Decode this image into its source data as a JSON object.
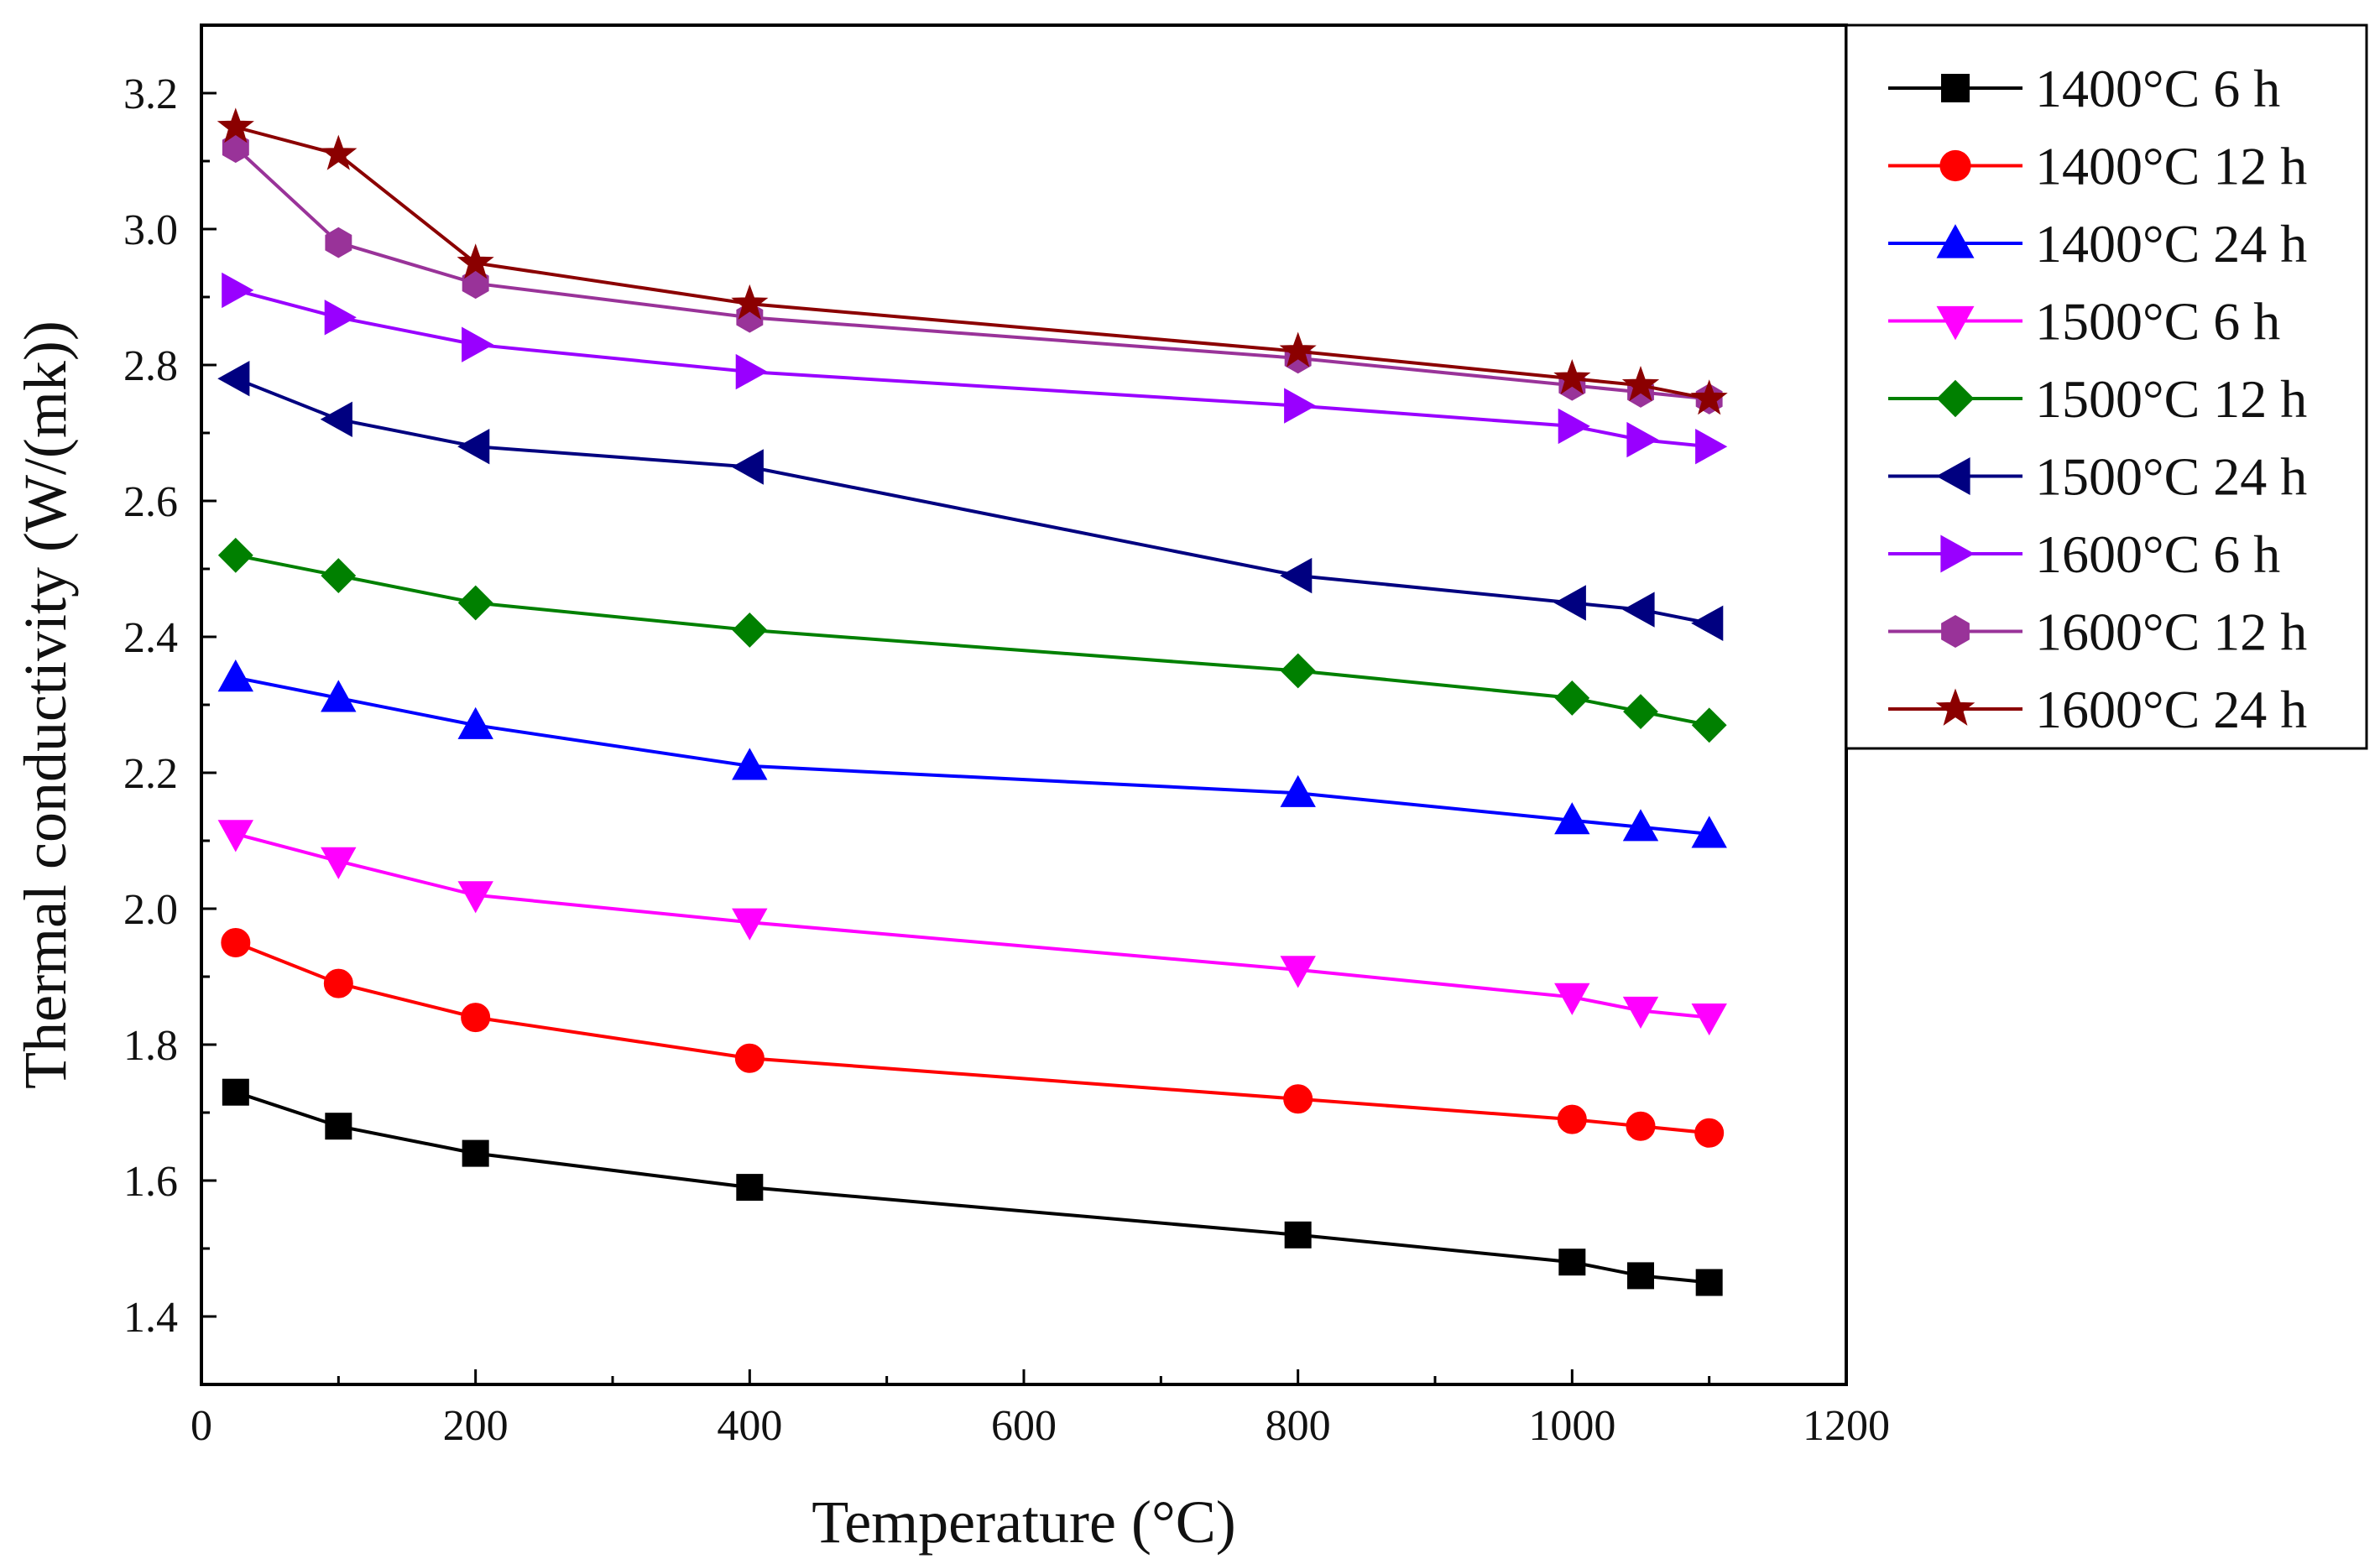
{
  "chart_data": {
    "type": "line",
    "title": "",
    "xlabel": "Temperature (°C)",
    "ylabel": "Thermal conductivity (W/(mk))",
    "xlim": [
      0,
      1200
    ],
    "ylim": [
      1.3,
      3.3
    ],
    "xticks": [
      0,
      200,
      400,
      600,
      800,
      1000,
      1200
    ],
    "xtick_labels": [
      "0",
      "200",
      "400",
      "600",
      "800",
      "1000",
      "1200"
    ],
    "yticks": [
      1.4,
      1.6,
      1.8,
      2.0,
      2.2,
      2.4,
      2.6,
      2.8,
      3.0,
      3.2
    ],
    "ytick_labels": [
      "1.4",
      "1.6",
      "1.8",
      "2.0",
      "2.2",
      "2.4",
      "2.6",
      "2.8",
      "3.0",
      "3.2"
    ],
    "grid": false,
    "legend_position": "outside-right-top",
    "x": [
      25,
      100,
      200,
      400,
      800,
      1000,
      1050,
      1100
    ],
    "series": [
      {
        "name": "1400°C 6 h",
        "color": "#000000",
        "marker": "square",
        "values": [
          1.73,
          1.68,
          1.64,
          1.59,
          1.52,
          1.48,
          1.46,
          1.45
        ]
      },
      {
        "name": "1400°C 12 h",
        "color": "#ff0000",
        "marker": "circle",
        "values": [
          1.95,
          1.89,
          1.84,
          1.78,
          1.72,
          1.69,
          1.68,
          1.67
        ]
      },
      {
        "name": "1400°C 24 h",
        "color": "#0000ff",
        "marker": "triangle-up",
        "values": [
          2.34,
          2.31,
          2.27,
          2.21,
          2.17,
          2.13,
          2.12,
          2.11
        ]
      },
      {
        "name": "1500°C 6 h",
        "color": "#ff00ff",
        "marker": "triangle-down",
        "values": [
          2.11,
          2.07,
          2.02,
          1.98,
          1.91,
          1.87,
          1.85,
          1.84
        ]
      },
      {
        "name": "1500°C 12 h",
        "color": "#008000",
        "marker": "diamond",
        "values": [
          2.52,
          2.49,
          2.45,
          2.41,
          2.35,
          2.31,
          2.29,
          2.27
        ]
      },
      {
        "name": "1500°C 24 h",
        "color": "#000080",
        "marker": "triangle-left",
        "values": [
          2.78,
          2.72,
          2.68,
          2.65,
          2.49,
          2.45,
          2.44,
          2.42
        ]
      },
      {
        "name": "1600°C 6 h",
        "color": "#9900ff",
        "marker": "triangle-right",
        "values": [
          2.91,
          2.87,
          2.83,
          2.79,
          2.74,
          2.71,
          2.69,
          2.68
        ]
      },
      {
        "name": "1600°C 12 h",
        "color": "#993399",
        "marker": "hexagon",
        "values": [
          3.12,
          2.98,
          2.92,
          2.87,
          2.81,
          2.77,
          2.76,
          2.75
        ]
      },
      {
        "name": "1600°C 24 h",
        "color": "#8b0000",
        "marker": "star",
        "values": [
          3.15,
          3.11,
          2.95,
          2.89,
          2.82,
          2.78,
          2.77,
          2.75
        ]
      }
    ]
  }
}
